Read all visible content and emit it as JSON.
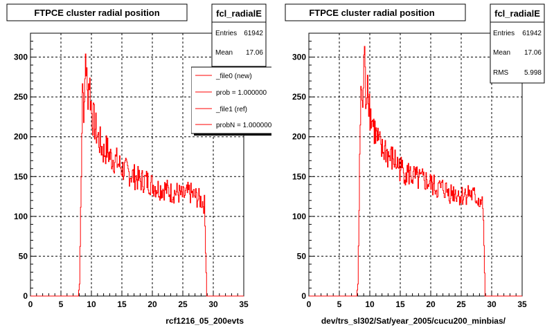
{
  "colors": {
    "histogram": "#ff0000",
    "frame": "#000000",
    "grid": "#000000",
    "background": "#ffffff"
  },
  "panels": [
    {
      "title": "FTPCE cluster radial position",
      "xlabel": "rcf1216_05_200evts",
      "stats": {
        "name": "fcl_radialE",
        "rows": [
          {
            "label": "Entries",
            "value": "61942"
          },
          {
            "label": "Mean",
            "value": "17.06"
          }
        ]
      },
      "legend": {
        "entries": [
          "_file0 (new)",
          "prob = 1.000000",
          "_file1 (ref)",
          "probN = 1.000000"
        ]
      }
    },
    {
      "title": "FTPCE cluster radial position",
      "xlabel": "dev/trs_sl302/Sat/year_2005/cucu200_minbias/",
      "stats": {
        "name": "fcl_radialE",
        "rows": [
          {
            "label": "Entries",
            "value": "61942"
          },
          {
            "label": "Mean",
            "value": "17.06"
          },
          {
            "label": "RMS",
            "value": "5.998"
          }
        ]
      }
    }
  ],
  "chart_data": [
    {
      "type": "line",
      "title": "FTPCE cluster radial position",
      "xlabel": "rcf1216_05_200evts",
      "ylabel": "",
      "xlim": [
        0,
        35
      ],
      "ylim": [
        0,
        330
      ],
      "x_ticks": [
        "0",
        "5",
        "10",
        "15",
        "20",
        "25",
        "30",
        "35"
      ],
      "y_ticks": [
        "0",
        "50",
        "100",
        "150",
        "200",
        "250",
        "300"
      ],
      "grid": true,
      "legend_position": "top-right",
      "series": [
        {
          "name": "_file0 (new)",
          "x": [
            0,
            7.8,
            8.0,
            8.2,
            8.5,
            8.8,
            9.0,
            9.3,
            9.6,
            10.0,
            10.5,
            11.0,
            11.5,
            12.0,
            12.5,
            13.0,
            14.0,
            15.0,
            16.0,
            17.0,
            18.0,
            19.0,
            20.0,
            21.0,
            22.0,
            23.0,
            24.0,
            25.0,
            26.0,
            27.0,
            28.0,
            28.5,
            28.7,
            28.9,
            35
          ],
          "y": [
            0,
            0,
            15,
            110,
            270,
            225,
            310,
            250,
            275,
            230,
            215,
            200,
            190,
            180,
            185,
            175,
            170,
            160,
            155,
            150,
            145,
            145,
            140,
            135,
            135,
            130,
            130,
            125,
            130,
            125,
            120,
            115,
            60,
            0,
            0
          ]
        }
      ]
    },
    {
      "type": "line",
      "title": "FTPCE cluster radial position",
      "xlabel": "dev/trs_sl302/Sat/year_2005/cucu200_minbias/",
      "ylabel": "",
      "xlim": [
        0,
        35
      ],
      "ylim": [
        0,
        330
      ],
      "x_ticks": [
        "0",
        "5",
        "10",
        "15",
        "20",
        "25",
        "30",
        "35"
      ],
      "y_ticks": [
        "0",
        "50",
        "100",
        "150",
        "200",
        "250",
        "300"
      ],
      "grid": true,
      "series": [
        {
          "x": [
            0,
            7.8,
            8.0,
            8.2,
            8.5,
            8.8,
            9.0,
            9.3,
            9.6,
            10.0,
            10.5,
            11.0,
            11.5,
            12.0,
            12.5,
            13.0,
            14.0,
            15.0,
            16.0,
            17.0,
            18.0,
            19.0,
            20.0,
            21.0,
            22.0,
            23.0,
            24.0,
            25.0,
            26.0,
            27.0,
            28.0,
            28.5,
            28.7,
            28.9,
            35
          ],
          "y": [
            0,
            0,
            15,
            110,
            270,
            225,
            310,
            250,
            275,
            230,
            215,
            200,
            190,
            180,
            185,
            175,
            170,
            160,
            155,
            150,
            145,
            145,
            140,
            135,
            135,
            130,
            130,
            125,
            130,
            125,
            120,
            115,
            60,
            0,
            0
          ]
        }
      ]
    }
  ]
}
